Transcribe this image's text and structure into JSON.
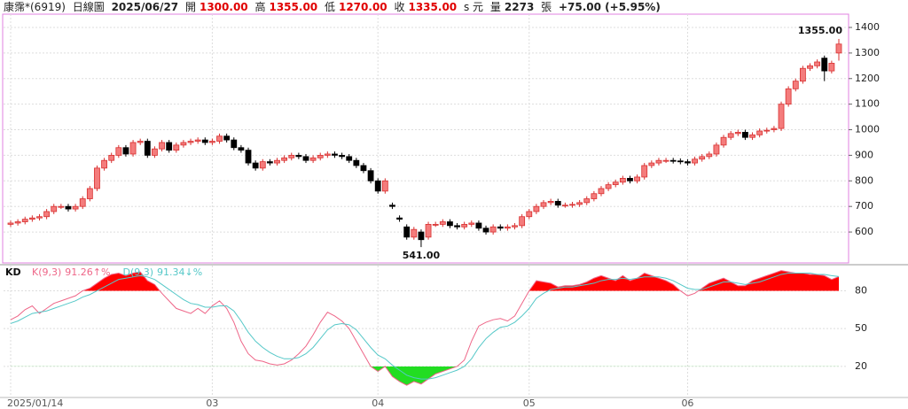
{
  "header": {
    "name": "康霈*(6919)",
    "period": "日線圖",
    "date": "2025/06/27",
    "open_label": "開",
    "open": "1300.00",
    "high_label": "高",
    "high": "1355.00",
    "low_label": "低",
    "low": "1270.00",
    "close_label": "收",
    "close": "1335.00",
    "unit": "s 元",
    "volume_label": "量",
    "volume": "2273",
    "volume_unit": "張",
    "change": "+75.00 (+5.95%)"
  },
  "chart_data": [
    {
      "type": "candlestick",
      "up_color": "#f47c7c",
      "up_edge": "#d83030",
      "down_color": "#000000",
      "max_label": "1355.00",
      "min_label": "541.00",
      "categories": [
        "2025/01/14",
        null,
        null,
        null,
        null,
        null,
        null,
        null,
        null,
        null,
        null,
        null,
        null,
        null,
        null,
        null,
        null,
        null,
        null,
        null,
        null,
        null,
        null,
        null,
        null,
        null,
        null,
        null,
        "03",
        null,
        null,
        null,
        null,
        null,
        null,
        null,
        null,
        null,
        null,
        null,
        null,
        null,
        null,
        null,
        null,
        null,
        null,
        null,
        null,
        null,
        null,
        "04",
        null,
        null,
        null,
        null,
        null,
        null,
        null,
        null,
        null,
        null,
        null,
        null,
        null,
        null,
        null,
        null,
        null,
        null,
        null,
        null,
        "05",
        null,
        null,
        null,
        null,
        null,
        null,
        null,
        null,
        null,
        null,
        null,
        null,
        null,
        null,
        null,
        null,
        null,
        null,
        null,
        null,
        null,
        "06",
        null,
        null,
        null,
        null,
        null,
        null,
        null,
        null,
        null,
        null,
        null,
        null,
        null,
        null,
        null,
        null,
        null,
        null,
        null,
        null,
        null
      ],
      "open": [
        630,
        635,
        640,
        650,
        655,
        660,
        680,
        700,
        700,
        690,
        700,
        730,
        770,
        850,
        880,
        900,
        930,
        905,
        950,
        955,
        900,
        925,
        950,
        920,
        940,
        950,
        955,
        960,
        950,
        955,
        975,
        960,
        930,
        920,
        870,
        850,
        875,
        870,
        880,
        890,
        900,
        895,
        880,
        890,
        900,
        905,
        900,
        895,
        880,
        860,
        840,
        800,
        760,
        705,
        655,
        620,
        580,
        600,
        580,
        630,
        630,
        640,
        625,
        620,
        630,
        635,
        615,
        600,
        620,
        615,
        620,
        625,
        660,
        680,
        700,
        715,
        720,
        705,
        705,
        708,
        715,
        730,
        750,
        770,
        785,
        795,
        810,
        800,
        815,
        860,
        870,
        880,
        880,
        878,
        875,
        870,
        885,
        895,
        905,
        940,
        970,
        985,
        990,
        970,
        980,
        995,
        1000,
        1005,
        1100,
        1160,
        1190,
        1240,
        1250,
        1280,
        1230,
        1300
      ],
      "high": [
        645,
        650,
        660,
        665,
        670,
        690,
        710,
        710,
        710,
        710,
        740,
        780,
        860,
        890,
        910,
        940,
        940,
        960,
        965,
        965,
        935,
        960,
        960,
        950,
        960,
        965,
        970,
        970,
        965,
        985,
        985,
        970,
        940,
        930,
        880,
        885,
        885,
        890,
        900,
        910,
        910,
        905,
        900,
        910,
        915,
        915,
        910,
        905,
        890,
        870,
        850,
        810,
        810,
        715,
        665,
        630,
        620,
        610,
        640,
        640,
        650,
        650,
        635,
        640,
        645,
        645,
        625,
        630,
        630,
        630,
        635,
        670,
        690,
        710,
        725,
        730,
        730,
        715,
        718,
        725,
        740,
        760,
        780,
        795,
        805,
        820,
        820,
        825,
        870,
        880,
        890,
        890,
        890,
        888,
        885,
        895,
        905,
        915,
        950,
        980,
        995,
        1000,
        1000,
        990,
        1005,
        1008,
        1015,
        1110,
        1170,
        1200,
        1250,
        1260,
        1275,
        1290,
        1270,
        1355
      ],
      "low": [
        620,
        625,
        630,
        640,
        645,
        650,
        670,
        690,
        680,
        680,
        690,
        720,
        760,
        840,
        870,
        890,
        895,
        895,
        940,
        890,
        890,
        915,
        910,
        910,
        930,
        940,
        945,
        940,
        940,
        945,
        950,
        920,
        910,
        860,
        840,
        840,
        860,
        860,
        870,
        880,
        885,
        870,
        870,
        880,
        890,
        890,
        885,
        870,
        850,
        830,
        790,
        750,
        750,
        690,
        640,
        570,
        570,
        541,
        570,
        620,
        620,
        615,
        610,
        610,
        620,
        605,
        590,
        590,
        605,
        605,
        610,
        615,
        650,
        670,
        690,
        705,
        695,
        695,
        695,
        698,
        705,
        720,
        740,
        760,
        775,
        785,
        790,
        790,
        805,
        850,
        860,
        870,
        868,
        865,
        860,
        860,
        875,
        885,
        895,
        930,
        960,
        975,
        960,
        960,
        970,
        985,
        990,
        995,
        1090,
        1150,
        1180,
        1230,
        1240,
        1190,
        1220,
        1270
      ],
      "close": [
        635,
        640,
        650,
        655,
        660,
        680,
        700,
        700,
        690,
        700,
        730,
        770,
        850,
        880,
        900,
        930,
        905,
        950,
        955,
        900,
        925,
        950,
        920,
        940,
        950,
        955,
        960,
        950,
        955,
        975,
        960,
        930,
        920,
        870,
        850,
        875,
        870,
        880,
        890,
        900,
        895,
        880,
        890,
        900,
        905,
        900,
        895,
        880,
        860,
        840,
        800,
        760,
        800,
        700,
        650,
        580,
        610,
        570,
        630,
        630,
        640,
        625,
        620,
        630,
        635,
        615,
        600,
        620,
        615,
        620,
        625,
        660,
        680,
        700,
        715,
        720,
        705,
        705,
        708,
        715,
        730,
        750,
        770,
        785,
        795,
        810,
        800,
        815,
        860,
        870,
        880,
        880,
        878,
        875,
        870,
        885,
        895,
        905,
        940,
        970,
        985,
        990,
        970,
        980,
        995,
        998,
        1005,
        1100,
        1160,
        1190,
        1240,
        1250,
        1265,
        1230,
        1260,
        1335
      ],
      "ylim": [
        486,
        1445
      ],
      "yticks": [
        600,
        700,
        800,
        900,
        1000,
        1100,
        1200,
        1300,
        1400
      ],
      "grid": true
    },
    {
      "type": "line",
      "title": "KD",
      "over_color": "#ff0000",
      "under_color": "#22dd22",
      "over": 80,
      "under": 20,
      "series": [
        {
          "name": "K(9,3)",
          "color": "#ee6688",
          "last": "91.26",
          "suffix": "↑%",
          "values": [
            57,
            60,
            65,
            68,
            62,
            66,
            70,
            72,
            74,
            76,
            80,
            82,
            86,
            90,
            93,
            94,
            92,
            94,
            95,
            88,
            85,
            78,
            72,
            66,
            64,
            62,
            66,
            62,
            68,
            72,
            66,
            55,
            40,
            30,
            25,
            24,
            22,
            21,
            22,
            25,
            30,
            36,
            45,
            55,
            63,
            60,
            56,
            50,
            40,
            30,
            20,
            16,
            20,
            12,
            8,
            5,
            8,
            6,
            10,
            14,
            16,
            18,
            20,
            25,
            40,
            52,
            55,
            57,
            58,
            56,
            60,
            70,
            80,
            88,
            87,
            86,
            83,
            84,
            84,
            85,
            87,
            90,
            92,
            90,
            88,
            92,
            88,
            90,
            94,
            92,
            90,
            88,
            85,
            80,
            76,
            78,
            82,
            86,
            88,
            90,
            87,
            84,
            84,
            88,
            90,
            92,
            94,
            96,
            95,
            94,
            94,
            93,
            93,
            92,
            89,
            91.26
          ]
        },
        {
          "name": "D(9,3)",
          "color": "#55c8c8",
          "last": "91.34",
          "suffix": "↓%",
          "values": [
            54,
            56,
            59,
            62,
            63,
            64,
            66,
            68,
            70,
            72,
            75,
            77,
            80,
            83,
            86,
            89,
            90,
            91,
            92,
            91,
            89,
            85,
            81,
            77,
            73,
            70,
            69,
            67,
            67,
            68,
            68,
            64,
            56,
            47,
            40,
            35,
            31,
            28,
            26,
            26,
            27,
            30,
            35,
            42,
            49,
            53,
            54,
            53,
            49,
            42,
            35,
            29,
            26,
            21,
            17,
            13,
            11,
            10,
            10,
            11,
            13,
            15,
            17,
            20,
            26,
            35,
            42,
            47,
            51,
            52,
            55,
            60,
            66,
            74,
            78,
            81,
            82,
            83,
            83,
            84,
            85,
            86,
            88,
            89,
            89,
            90,
            89,
            90,
            91,
            91,
            91,
            90,
            88,
            85,
            82,
            81,
            81,
            83,
            85,
            87,
            87,
            86,
            85,
            86,
            87,
            89,
            91,
            93,
            94,
            94,
            94,
            94,
            93,
            93,
            92,
            91.34
          ]
        }
      ],
      "ylim": [
        -4,
        100
      ],
      "yticks": [
        20,
        50,
        80
      ],
      "grid": true
    }
  ]
}
